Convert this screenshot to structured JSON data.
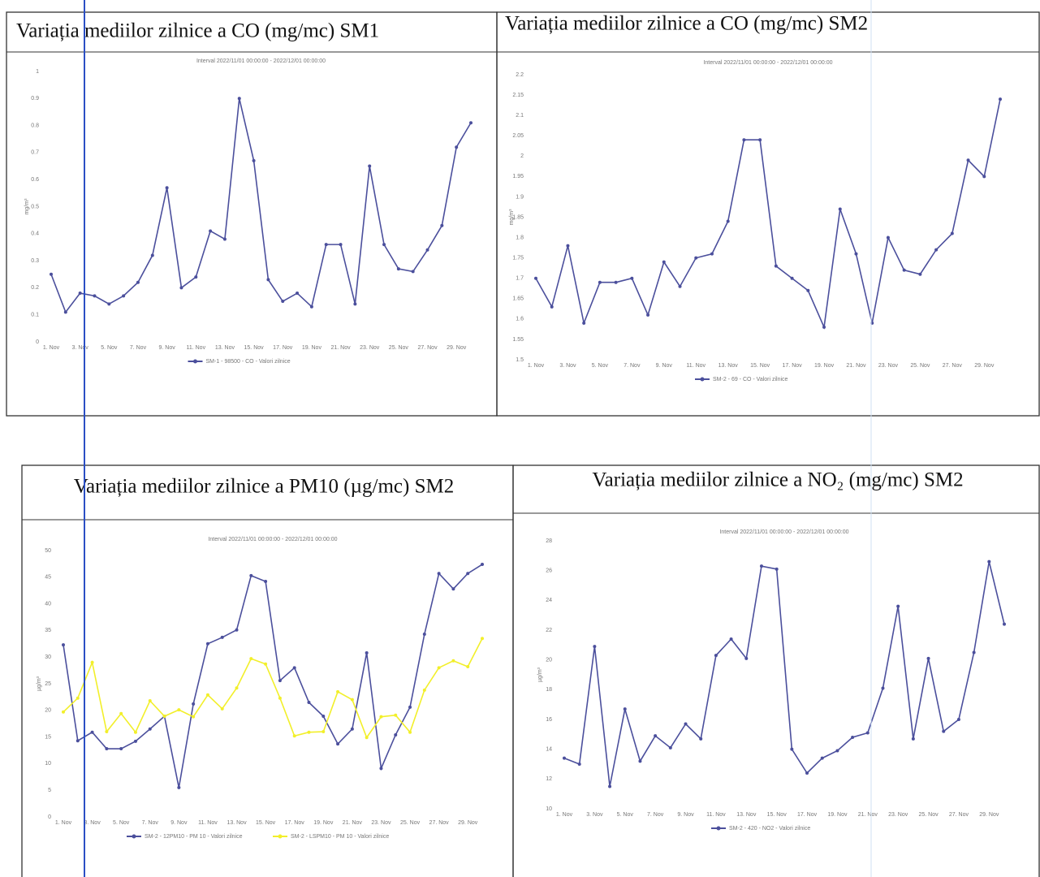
{
  "chart_data": [
    {
      "type": "line",
      "title": "Variația mediilor zilnice a CO (mg/mc) SM1",
      "subtitle": "Interval 2022/11/01 00:00:00 - 2022/12/01 00:00:00",
      "ylabel": "mg/m³",
      "categories": [
        "1. Nov",
        null,
        "3. Nov",
        null,
        "5. Nov",
        null,
        "7. Nov",
        null,
        "9. Nov",
        null,
        "11. Nov",
        null,
        "13. Nov",
        null,
        "15. Nov",
        null,
        "17. Nov",
        null,
        "19. Nov",
        null,
        "21. Nov",
        null,
        "23. Nov",
        null,
        "25. Nov",
        null,
        "27. Nov",
        null,
        "29. Nov",
        null
      ],
      "ylim": [
        0,
        1
      ],
      "yticks": [
        0,
        0.1,
        0.2,
        0.3,
        0.4,
        0.5,
        0.6,
        0.7,
        0.8,
        0.9,
        1
      ],
      "series": [
        {
          "name": "SM-1 - 98500 - CO - Valori zilnice",
          "color": "#4b4f9c",
          "values": [
            0.25,
            0.11,
            0.18,
            0.17,
            0.14,
            0.17,
            0.22,
            0.32,
            0.57,
            0.2,
            0.24,
            0.41,
            0.38,
            0.9,
            0.67,
            0.23,
            0.15,
            0.18,
            0.13,
            0.36,
            0.36,
            0.14,
            0.65,
            0.36,
            0.27,
            0.26,
            0.34,
            0.43,
            0.72,
            0.81
          ]
        }
      ]
    },
    {
      "type": "line",
      "title": "Variația mediilor zilnice a CO (mg/mc) SM2",
      "subtitle": "Interval 2022/11/01 00:00:00 - 2022/12/01 00:00:00",
      "ylabel": "mg/m³",
      "categories": [
        "1. Nov",
        null,
        "3. Nov",
        null,
        "5. Nov",
        null,
        "7. Nov",
        null,
        "9. Nov",
        null,
        "11. Nov",
        null,
        "13. Nov",
        null,
        "15. Nov",
        null,
        "17. Nov",
        null,
        "19. Nov",
        null,
        "21. Nov",
        null,
        "23. Nov",
        null,
        "25. Nov",
        null,
        "27. Nov",
        null,
        "29. Nov",
        null
      ],
      "ylim": [
        1.5,
        2.2
      ],
      "yticks": [
        1.5,
        1.55,
        1.6,
        1.65,
        1.7,
        1.75,
        1.8,
        1.85,
        1.9,
        1.95,
        2,
        2.05,
        2.1,
        2.15,
        2.2
      ],
      "series": [
        {
          "name": "SM-2 - 69 - CO - Valori zilnice",
          "color": "#4b4f9c",
          "values": [
            1.7,
            1.63,
            1.78,
            1.59,
            1.69,
            1.69,
            1.7,
            1.61,
            1.74,
            1.68,
            1.75,
            1.76,
            1.84,
            2.04,
            2.04,
            1.73,
            1.7,
            1.67,
            1.58,
            1.87,
            1.76,
            1.59,
            1.8,
            1.72,
            1.71,
            1.77,
            1.81,
            1.99,
            1.95,
            2.14
          ]
        }
      ]
    },
    {
      "type": "line",
      "title": "Variația mediilor zilnice a PM10 (µg/mc) SM2",
      "subtitle": "Interval 2022/11/01 00:00:00 - 2022/12/01 00:00:00",
      "ylabel": "µg/m³",
      "categories": [
        "1. Nov",
        null,
        "3. Nov",
        null,
        "5. Nov",
        null,
        "7. Nov",
        null,
        "9. Nov",
        null,
        "11. Nov",
        null,
        "13. Nov",
        null,
        "15. Nov",
        null,
        "17. Nov",
        null,
        "19. Nov",
        null,
        "21. Nov",
        null,
        "23. Nov",
        null,
        "25. Nov",
        null,
        "27. Nov",
        null,
        "29. Nov",
        null
      ],
      "ylim": [
        0,
        50
      ],
      "yticks": [
        0,
        5,
        10,
        15,
        20,
        25,
        30,
        35,
        40,
        45,
        50
      ],
      "series": [
        {
          "name": "SM-2 - 12PM10 - PM 10 - Valori zilnice",
          "color": "#4b4f9c",
          "values": [
            32.3,
            14.3,
            15.9,
            12.8,
            12.8,
            14.2,
            16.5,
            18.9,
            5.5,
            21.2,
            32.5,
            33.7,
            35.1,
            45.3,
            44.2,
            25.6,
            28,
            21.5,
            18.9,
            13.7,
            16.5,
            30.8,
            9.1,
            15.4,
            20.6,
            34.3,
            45.7,
            42.8,
            45.7,
            47.4
          ]
        },
        {
          "name": "SM-2 - LSPM10 - PM 10 - Valori zilnice",
          "color": "#f2ef2a",
          "values": [
            19.7,
            22.3,
            29,
            16,
            19.4,
            15.9,
            21.8,
            18.9,
            20.1,
            18.8,
            22.9,
            20.3,
            24.2,
            29.7,
            28.7,
            22.3,
            15.2,
            15.9,
            16,
            23.5,
            22,
            14.9,
            18.8,
            19.1,
            15.9,
            23.8,
            28,
            29.3,
            28.2,
            33.5
          ]
        }
      ]
    },
    {
      "type": "line",
      "title": "Variația mediilor zilnice a NO₂ (mg/mc) SM2",
      "subtitle": "Interval 2022/11/01 00:00:00 - 2022/12/01 00:00:00",
      "ylabel": "µg/m³",
      "categories": [
        "1. Nov",
        null,
        "3. Nov",
        null,
        "5. Nov",
        null,
        "7. Nov",
        null,
        "9. Nov",
        null,
        "11. Nov",
        null,
        "13. Nov",
        null,
        "15. Nov",
        null,
        "17. Nov",
        null,
        "19. Nov",
        null,
        "21. Nov",
        null,
        "23. Nov",
        null,
        "25. Nov",
        null,
        "27. Nov",
        null,
        "29. Nov",
        null
      ],
      "ylim": [
        10,
        28
      ],
      "yticks": [
        10,
        12,
        14,
        16,
        18,
        20,
        22,
        24,
        26,
        28
      ],
      "series": [
        {
          "name": "SM-2 - 420 - NO2 - Valori zilnice",
          "color": "#4b4f9c",
          "values": [
            13.4,
            13,
            20.9,
            11.5,
            16.7,
            13.2,
            14.9,
            14.1,
            15.7,
            14.7,
            20.3,
            21.4,
            20.1,
            26.3,
            26.1,
            14,
            12.4,
            13.4,
            13.9,
            14.8,
            15.1,
            18.1,
            23.6,
            14.7,
            20.1,
            15.2,
            16,
            20.5,
            26.6,
            22.4
          ]
        }
      ]
    }
  ]
}
